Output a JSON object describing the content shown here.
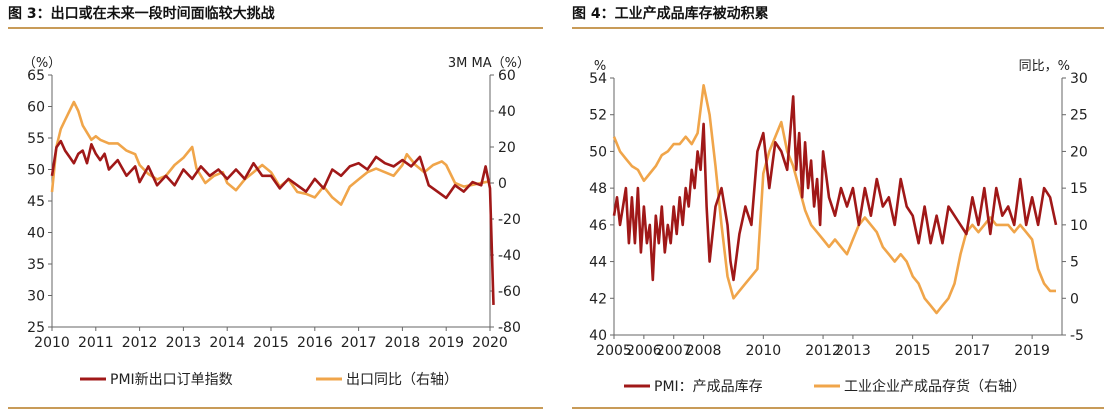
{
  "colors": {
    "primary": "#a01818",
    "secondary": "#f0a54a",
    "axis": "#666666",
    "rule": "#c89b58"
  },
  "chart_data": [
    {
      "type": "line",
      "title": "图 3：出口或在未来一段时间面临较大挑战",
      "left_unit": "（%）",
      "right_unit": "3M MA（%）",
      "ylim_left": [
        25,
        65
      ],
      "yticks_left": [
        "65",
        "60",
        "55",
        "50",
        "45",
        "40",
        "35",
        "30",
        "25"
      ],
      "ylim_right": [
        -80,
        60
      ],
      "yticks_right": [
        "60",
        "40",
        "20",
        "0",
        "-20",
        "-40",
        "-60",
        "-80"
      ],
      "xlim": [
        2010,
        2020
      ],
      "xticks": [
        "2010",
        "2011",
        "2012",
        "2013",
        "2014",
        "2015",
        "2016",
        "2017",
        "2018",
        "2019",
        "2020"
      ],
      "grid": false,
      "legend_position": "bottom",
      "series": [
        {
          "name": "PMI新出口订单指数",
          "axis": "left",
          "color": "#a01818",
          "x": [
            2010.0,
            2010.1,
            2010.2,
            2010.3,
            2010.4,
            2010.5,
            2010.6,
            2010.7,
            2010.8,
            2010.9,
            2011.0,
            2011.1,
            2011.2,
            2011.3,
            2011.5,
            2011.7,
            2011.9,
            2012.0,
            2012.2,
            2012.4,
            2012.6,
            2012.8,
            2013.0,
            2013.2,
            2013.4,
            2013.6,
            2013.8,
            2014.0,
            2014.2,
            2014.4,
            2014.6,
            2014.8,
            2015.0,
            2015.2,
            2015.4,
            2015.6,
            2015.8,
            2016.0,
            2016.2,
            2016.4,
            2016.6,
            2016.8,
            2017.0,
            2017.2,
            2017.4,
            2017.6,
            2017.8,
            2018.0,
            2018.2,
            2018.4,
            2018.6,
            2018.8,
            2019.0,
            2019.2,
            2019.4,
            2019.6,
            2019.8,
            2019.9,
            2020.0,
            2020.08
          ],
          "y": [
            49,
            53.5,
            54.5,
            53,
            52,
            51,
            52.5,
            53,
            51,
            54,
            52.5,
            51.5,
            52.5,
            50,
            51.5,
            49,
            50.5,
            48,
            50.5,
            47.5,
            49,
            47.5,
            50,
            48.5,
            50.5,
            49,
            50,
            48.5,
            50,
            48.5,
            51,
            49,
            49,
            47,
            48.5,
            47.5,
            46.5,
            48.5,
            47,
            50,
            49,
            50.5,
            51,
            50,
            52,
            51,
            50.5,
            51.5,
            50.5,
            52,
            47.5,
            46.5,
            45.5,
            47.5,
            46.5,
            48,
            47.5,
            50.5,
            47,
            28.5
          ]
        },
        {
          "name": "出口同比（右轴）",
          "axis": "right",
          "color": "#f0a54a",
          "x": [
            2010.0,
            2010.1,
            2010.2,
            2010.3,
            2010.4,
            2010.5,
            2010.6,
            2010.7,
            2010.8,
            2010.9,
            2011.0,
            2011.1,
            2011.3,
            2011.5,
            2011.7,
            2011.9,
            2012.0,
            2012.2,
            2012.4,
            2012.6,
            2012.8,
            2013.0,
            2013.2,
            2013.3,
            2013.5,
            2013.7,
            2013.9,
            2014.0,
            2014.2,
            2014.4,
            2014.6,
            2014.8,
            2015.0,
            2015.2,
            2015.4,
            2015.6,
            2015.8,
            2016.0,
            2016.2,
            2016.4,
            2016.6,
            2016.8,
            2017.0,
            2017.2,
            2017.4,
            2017.6,
            2017.8,
            2018.0,
            2018.1,
            2018.3,
            2018.5,
            2018.7,
            2018.9,
            2019.0,
            2019.2,
            2019.4,
            2019.6,
            2019.8,
            2020.0
          ],
          "y": [
            -5,
            20,
            30,
            35,
            40,
            45,
            40,
            32,
            28,
            24,
            26,
            24,
            22,
            22,
            18,
            16,
            10,
            5,
            2,
            4,
            10,
            14,
            20,
            8,
            0,
            4,
            6,
            0,
            -4,
            2,
            6,
            10,
            6,
            -2,
            2,
            -5,
            -6,
            -8,
            -2,
            -8,
            -12,
            -2,
            2,
            6,
            8,
            6,
            4,
            10,
            16,
            10,
            6,
            10,
            12,
            10,
            0,
            -2,
            -1,
            0,
            1
          ]
        }
      ]
    },
    {
      "type": "line",
      "title": "图 4：工业产成品库存被动积累",
      "left_unit": "%",
      "right_unit": "同比，%",
      "ylim_left": [
        40,
        54
      ],
      "yticks_left": [
        "54",
        "52",
        "50",
        "48",
        "46",
        "44",
        "42",
        "40"
      ],
      "ylim_right": [
        -5,
        30
      ],
      "yticks_right": [
        "30",
        "25",
        "20",
        "15",
        "10",
        "5",
        "0",
        "-5"
      ],
      "xlim": [
        2005,
        2020
      ],
      "xticks": [
        "2005",
        "2006",
        "2007",
        "2008",
        "2010",
        "2012",
        "2013",
        "2015",
        "2017",
        "2019"
      ],
      "grid": false,
      "legend_position": "bottom",
      "series": [
        {
          "name": "PMI：产成品库存",
          "axis": "left",
          "color": "#a01818",
          "x": [
            2005.0,
            2005.1,
            2005.2,
            2005.3,
            2005.4,
            2005.5,
            2005.6,
            2005.7,
            2005.8,
            2005.9,
            2006.0,
            2006.1,
            2006.2,
            2006.3,
            2006.4,
            2006.5,
            2006.6,
            2006.7,
            2006.8,
            2006.9,
            2007.0,
            2007.1,
            2007.2,
            2007.3,
            2007.4,
            2007.5,
            2007.6,
            2007.7,
            2007.8,
            2007.9,
            2008.0,
            2008.1,
            2008.2,
            2008.4,
            2008.6,
            2008.8,
            2008.9,
            2009.0,
            2009.2,
            2009.4,
            2009.6,
            2009.8,
            2010.0,
            2010.2,
            2010.4,
            2010.6,
            2010.8,
            2011.0,
            2011.1,
            2011.2,
            2011.3,
            2011.4,
            2011.5,
            2011.6,
            2011.7,
            2011.8,
            2011.9,
            2012.0,
            2012.2,
            2012.4,
            2012.6,
            2012.8,
            2013.0,
            2013.2,
            2013.4,
            2013.6,
            2013.8,
            2014.0,
            2014.2,
            2014.4,
            2014.6,
            2014.8,
            2015.0,
            2015.2,
            2015.4,
            2015.6,
            2015.8,
            2016.0,
            2016.2,
            2016.4,
            2016.6,
            2016.8,
            2017.0,
            2017.2,
            2017.4,
            2017.6,
            2017.8,
            2018.0,
            2018.2,
            2018.4,
            2018.6,
            2018.8,
            2019.0,
            2019.2,
            2019.4,
            2019.6,
            2019.8
          ],
          "y": [
            46.5,
            47.5,
            46,
            47,
            48,
            45,
            47.5,
            45,
            48,
            44.5,
            47,
            45,
            46,
            43,
            46.5,
            45,
            47,
            44.5,
            46,
            45,
            47,
            45.5,
            47.5,
            46,
            48,
            47,
            49,
            48,
            50,
            49,
            51.5,
            47,
            44,
            47,
            48,
            46,
            44,
            43,
            45.5,
            47,
            46,
            50,
            51,
            48,
            50.5,
            50,
            49,
            53,
            49,
            51,
            47.5,
            50.5,
            48,
            49.5,
            47,
            48.5,
            46,
            50,
            47.5,
            46.5,
            48,
            47,
            48,
            46,
            48,
            46.5,
            48.5,
            47,
            47.5,
            46,
            48.5,
            47,
            46.5,
            45,
            47,
            45,
            46.5,
            45,
            47,
            46.5,
            46,
            45.5,
            47.5,
            46,
            48,
            45.5,
            48,
            46.5,
            47,
            46,
            48.5,
            46,
            47.5,
            46,
            48,
            47.5,
            46
          ]
        },
        {
          "name": "工业企业产成品存货（右轴）",
          "axis": "right",
          "color": "#f0a54a",
          "x": [
            2005.0,
            2005.2,
            2005.4,
            2005.6,
            2005.8,
            2006.0,
            2006.2,
            2006.4,
            2006.6,
            2006.8,
            2007.0,
            2007.2,
            2007.4,
            2007.6,
            2007.8,
            2008.0,
            2008.2,
            2008.4,
            2008.6,
            2008.8,
            2009.0,
            2009.2,
            2009.4,
            2009.6,
            2009.8,
            2010.0,
            2010.2,
            2010.4,
            2010.6,
            2010.8,
            2011.0,
            2011.2,
            2011.4,
            2011.6,
            2011.8,
            2012.0,
            2012.2,
            2012.4,
            2012.6,
            2012.8,
            2013.0,
            2013.2,
            2013.4,
            2013.6,
            2013.8,
            2014.0,
            2014.2,
            2014.4,
            2014.6,
            2014.8,
            2015.0,
            2015.2,
            2015.4,
            2015.6,
            2015.8,
            2016.0,
            2016.2,
            2016.4,
            2016.6,
            2016.8,
            2017.0,
            2017.2,
            2017.4,
            2017.6,
            2017.8,
            2018.0,
            2018.2,
            2018.4,
            2018.6,
            2018.8,
            2019.0,
            2019.2,
            2019.4,
            2019.6,
            2019.8
          ],
          "y": [
            22,
            20,
            19,
            18,
            17.5,
            16,
            17,
            18,
            19.5,
            20,
            21,
            21,
            22,
            21,
            22.5,
            29,
            25,
            18,
            10,
            3,
            0,
            1,
            2,
            3,
            4,
            17,
            20,
            22,
            24,
            20,
            18,
            15,
            12,
            10,
            9,
            8,
            7,
            8,
            7,
            6,
            8,
            10,
            11,
            10,
            9,
            7,
            6,
            5,
            6,
            5,
            3,
            2,
            0,
            -1,
            -2,
            -1,
            0,
            2,
            6,
            9,
            10,
            9,
            10,
            11,
            10,
            10,
            10,
            9,
            10,
            9,
            8,
            4,
            2,
            1,
            1
          ]
        }
      ]
    }
  ]
}
